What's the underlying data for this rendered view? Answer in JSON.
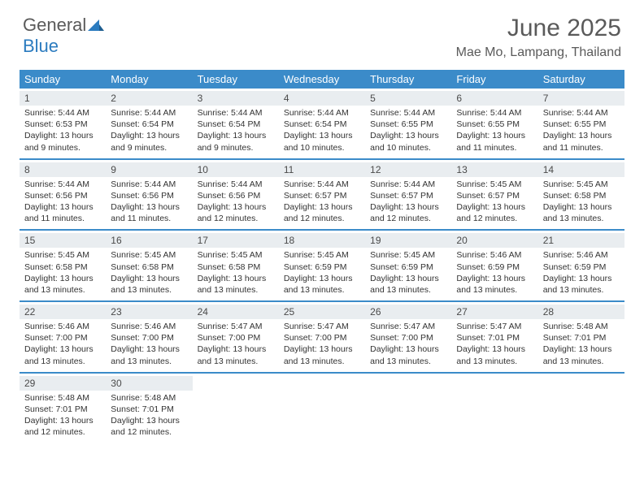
{
  "brand": {
    "part1": "General",
    "part2": "Blue"
  },
  "title": "June 2025",
  "location": "Mae Mo, Lampang, Thailand",
  "colors": {
    "header_bg": "#3b8bc9",
    "daynum_bg": "#e9edf0",
    "border": "#3b8bc9",
    "text": "#333333",
    "muted": "#5a5a5a"
  },
  "weekdays": [
    "Sunday",
    "Monday",
    "Tuesday",
    "Wednesday",
    "Thursday",
    "Friday",
    "Saturday"
  ],
  "weeks": [
    [
      {
        "n": "1",
        "sr": "Sunrise: 5:44 AM",
        "ss": "Sunset: 6:53 PM",
        "dl": "Daylight: 13 hours and 9 minutes."
      },
      {
        "n": "2",
        "sr": "Sunrise: 5:44 AM",
        "ss": "Sunset: 6:54 PM",
        "dl": "Daylight: 13 hours and 9 minutes."
      },
      {
        "n": "3",
        "sr": "Sunrise: 5:44 AM",
        "ss": "Sunset: 6:54 PM",
        "dl": "Daylight: 13 hours and 9 minutes."
      },
      {
        "n": "4",
        "sr": "Sunrise: 5:44 AM",
        "ss": "Sunset: 6:54 PM",
        "dl": "Daylight: 13 hours and 10 minutes."
      },
      {
        "n": "5",
        "sr": "Sunrise: 5:44 AM",
        "ss": "Sunset: 6:55 PM",
        "dl": "Daylight: 13 hours and 10 minutes."
      },
      {
        "n": "6",
        "sr": "Sunrise: 5:44 AM",
        "ss": "Sunset: 6:55 PM",
        "dl": "Daylight: 13 hours and 11 minutes."
      },
      {
        "n": "7",
        "sr": "Sunrise: 5:44 AM",
        "ss": "Sunset: 6:55 PM",
        "dl": "Daylight: 13 hours and 11 minutes."
      }
    ],
    [
      {
        "n": "8",
        "sr": "Sunrise: 5:44 AM",
        "ss": "Sunset: 6:56 PM",
        "dl": "Daylight: 13 hours and 11 minutes."
      },
      {
        "n": "9",
        "sr": "Sunrise: 5:44 AM",
        "ss": "Sunset: 6:56 PM",
        "dl": "Daylight: 13 hours and 11 minutes."
      },
      {
        "n": "10",
        "sr": "Sunrise: 5:44 AM",
        "ss": "Sunset: 6:56 PM",
        "dl": "Daylight: 13 hours and 12 minutes."
      },
      {
        "n": "11",
        "sr": "Sunrise: 5:44 AM",
        "ss": "Sunset: 6:57 PM",
        "dl": "Daylight: 13 hours and 12 minutes."
      },
      {
        "n": "12",
        "sr": "Sunrise: 5:44 AM",
        "ss": "Sunset: 6:57 PM",
        "dl": "Daylight: 13 hours and 12 minutes."
      },
      {
        "n": "13",
        "sr": "Sunrise: 5:45 AM",
        "ss": "Sunset: 6:57 PM",
        "dl": "Daylight: 13 hours and 12 minutes."
      },
      {
        "n": "14",
        "sr": "Sunrise: 5:45 AM",
        "ss": "Sunset: 6:58 PM",
        "dl": "Daylight: 13 hours and 13 minutes."
      }
    ],
    [
      {
        "n": "15",
        "sr": "Sunrise: 5:45 AM",
        "ss": "Sunset: 6:58 PM",
        "dl": "Daylight: 13 hours and 13 minutes."
      },
      {
        "n": "16",
        "sr": "Sunrise: 5:45 AM",
        "ss": "Sunset: 6:58 PM",
        "dl": "Daylight: 13 hours and 13 minutes."
      },
      {
        "n": "17",
        "sr": "Sunrise: 5:45 AM",
        "ss": "Sunset: 6:58 PM",
        "dl": "Daylight: 13 hours and 13 minutes."
      },
      {
        "n": "18",
        "sr": "Sunrise: 5:45 AM",
        "ss": "Sunset: 6:59 PM",
        "dl": "Daylight: 13 hours and 13 minutes."
      },
      {
        "n": "19",
        "sr": "Sunrise: 5:45 AM",
        "ss": "Sunset: 6:59 PM",
        "dl": "Daylight: 13 hours and 13 minutes."
      },
      {
        "n": "20",
        "sr": "Sunrise: 5:46 AM",
        "ss": "Sunset: 6:59 PM",
        "dl": "Daylight: 13 hours and 13 minutes."
      },
      {
        "n": "21",
        "sr": "Sunrise: 5:46 AM",
        "ss": "Sunset: 6:59 PM",
        "dl": "Daylight: 13 hours and 13 minutes."
      }
    ],
    [
      {
        "n": "22",
        "sr": "Sunrise: 5:46 AM",
        "ss": "Sunset: 7:00 PM",
        "dl": "Daylight: 13 hours and 13 minutes."
      },
      {
        "n": "23",
        "sr": "Sunrise: 5:46 AM",
        "ss": "Sunset: 7:00 PM",
        "dl": "Daylight: 13 hours and 13 minutes."
      },
      {
        "n": "24",
        "sr": "Sunrise: 5:47 AM",
        "ss": "Sunset: 7:00 PM",
        "dl": "Daylight: 13 hours and 13 minutes."
      },
      {
        "n": "25",
        "sr": "Sunrise: 5:47 AM",
        "ss": "Sunset: 7:00 PM",
        "dl": "Daylight: 13 hours and 13 minutes."
      },
      {
        "n": "26",
        "sr": "Sunrise: 5:47 AM",
        "ss": "Sunset: 7:00 PM",
        "dl": "Daylight: 13 hours and 13 minutes."
      },
      {
        "n": "27",
        "sr": "Sunrise: 5:47 AM",
        "ss": "Sunset: 7:01 PM",
        "dl": "Daylight: 13 hours and 13 minutes."
      },
      {
        "n": "28",
        "sr": "Sunrise: 5:48 AM",
        "ss": "Sunset: 7:01 PM",
        "dl": "Daylight: 13 hours and 13 minutes."
      }
    ],
    [
      {
        "n": "29",
        "sr": "Sunrise: 5:48 AM",
        "ss": "Sunset: 7:01 PM",
        "dl": "Daylight: 13 hours and 12 minutes."
      },
      {
        "n": "30",
        "sr": "Sunrise: 5:48 AM",
        "ss": "Sunset: 7:01 PM",
        "dl": "Daylight: 13 hours and 12 minutes."
      },
      null,
      null,
      null,
      null,
      null
    ]
  ]
}
